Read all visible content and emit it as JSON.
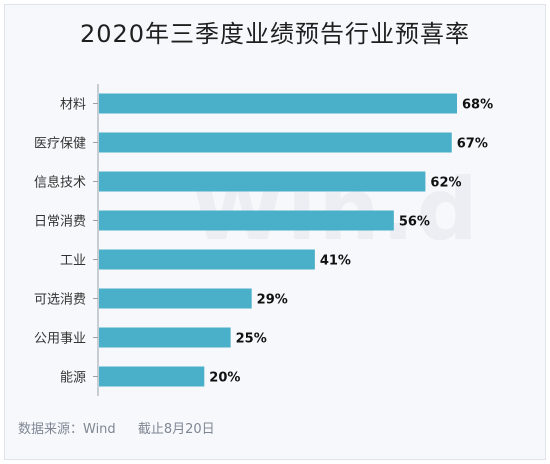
{
  "chart_data": {
    "type": "bar",
    "orientation": "horizontal",
    "title": "2020年三季度业绩预告行业预喜率",
    "categories": [
      "材料",
      "医疗保健",
      "信息技术",
      "日常消费",
      "工业",
      "可选消费",
      "公用事业",
      "能源"
    ],
    "values": [
      68,
      67,
      62,
      56,
      41,
      29,
      25,
      20
    ],
    "value_labels": [
      "68%",
      "67%",
      "62%",
      "56%",
      "41%",
      "29%",
      "25%",
      "20%"
    ],
    "unit": "%",
    "xlim": [
      0,
      68
    ],
    "bar_color": "#4aafc8",
    "grid": false,
    "watermark": "Win.d"
  },
  "footer": {
    "source": "数据来源：Wind",
    "cutoff": "截止8月20日"
  }
}
